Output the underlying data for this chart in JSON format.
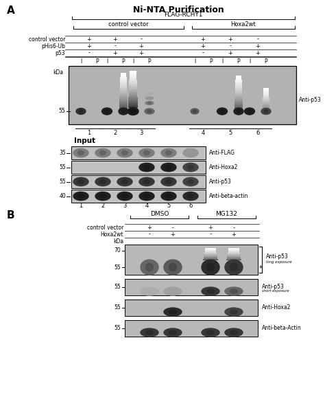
{
  "fig_width": 4.74,
  "fig_height": 5.91,
  "bg_color": "#ffffff",
  "panel_A_title": "Ni-NTA Purification",
  "flag_rchy1_label": "FLAG-RCHY1",
  "control_vector_group": "control vector",
  "hoxa2wt_group": "Hoxa2wt",
  "row_labels": [
    "control vector",
    "pHis6-Ub",
    "p53"
  ],
  "row1_values": [
    "+",
    "+",
    "-",
    "+",
    "+",
    "-"
  ],
  "row2_values": [
    "+",
    "-",
    "+",
    "+",
    "-",
    "+"
  ],
  "row3_values": [
    "-",
    "+",
    "+",
    "-",
    "+",
    "+"
  ],
  "lane_numbers_top": [
    "1",
    "2",
    "3",
    "4",
    "5",
    "6"
  ],
  "anti_p53_label": "Anti-p53",
  "input_title": "Input",
  "input_blots": [
    {
      "kda": "35",
      "label": "Anti-FLAG",
      "band_ints": [
        0.55,
        0.55,
        0.55,
        0.55,
        0.55,
        0.45
      ]
    },
    {
      "kda": "55",
      "label": "Anti-Hoxa2",
      "band_ints": [
        0.05,
        0.05,
        0.05,
        0.95,
        0.95,
        0.8
      ]
    },
    {
      "kda": "55",
      "label": "Anti-p53",
      "band_ints": [
        0.85,
        0.85,
        0.85,
        0.85,
        0.85,
        0.8
      ]
    },
    {
      "kda": "40",
      "label": "Anti-beta-actin",
      "band_ints": [
        0.95,
        0.95,
        0.95,
        0.95,
        0.95,
        0.9
      ]
    }
  ],
  "lane_numbers_input": [
    "1",
    "2",
    "3",
    "4",
    "5",
    "6"
  ],
  "panel_B_dmso": "DMSO",
  "panel_B_mg132": "MG132",
  "panel_B_row1_label": "control vector",
  "panel_B_row2_label": "Hoxa2wt",
  "panel_B_row1_vals": [
    "+",
    "-",
    "+",
    "-"
  ],
  "panel_B_row2_vals": [
    "-",
    "+",
    "-",
    "+"
  ],
  "panel_B_blots": [
    {
      "kda_top": "70",
      "kda_bot": "55",
      "label": "Anti-p53",
      "sublabel": "long exposure",
      "has_bracket": true,
      "has_star": true,
      "band_ints": [
        0.65,
        0.7,
        0.9,
        0.85
      ],
      "has_smear": [
        false,
        false,
        true,
        true
      ]
    },
    {
      "kda": "55",
      "label": "Anti-p53",
      "sublabel": "short exposure",
      "has_bracket": false,
      "has_star": false,
      "band_ints": [
        0.35,
        0.4,
        0.85,
        0.65
      ],
      "has_smear": [
        false,
        false,
        false,
        false
      ]
    },
    {
      "kda": "55",
      "label": "Anti-Hoxa2",
      "sublabel": "",
      "has_bracket": false,
      "has_star": false,
      "band_ints": [
        0.0,
        0.9,
        0.0,
        0.8
      ],
      "has_smear": [
        false,
        false,
        false,
        false
      ]
    },
    {
      "kda": "55",
      "label": "Anti-beta-Actin",
      "sublabel": "",
      "has_bracket": false,
      "has_star": false,
      "band_ints": [
        0.85,
        0.85,
        0.85,
        0.85
      ],
      "has_smear": [
        false,
        false,
        false,
        false
      ]
    }
  ]
}
